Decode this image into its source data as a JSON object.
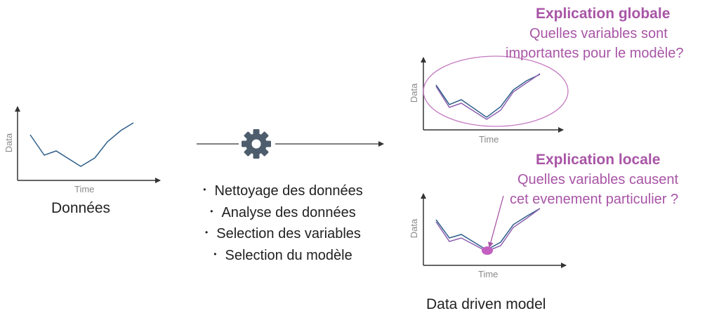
{
  "left_chart": {
    "ylabel": "Data",
    "xlabel": "Time",
    "caption": "Données"
  },
  "pipeline": {
    "gear_icon": "gear-icon",
    "steps": [
      "Nettoyage des données",
      "Analyse des données",
      "Selection des variables",
      "Selection du modèle"
    ]
  },
  "global_chart": {
    "ylabel": "Data",
    "xlabel": "Time"
  },
  "local_chart": {
    "ylabel": "Data",
    "xlabel": "Time"
  },
  "global_explanation": {
    "title": "Explication globale",
    "line1": "Quelles variables sont",
    "line2": "importantes pour le modèle?"
  },
  "local_explanation": {
    "title": "Explication locale",
    "line1": "Quelles variables causent",
    "line2": "cet evenement particulier ?"
  },
  "model_caption": "Data driven model",
  "colors": {
    "series_blue": "#2f5f8a",
    "series_purple": "#8b5fb0",
    "accent": "#a855a6",
    "axis": "#333333",
    "gear": "#4d5d6d"
  }
}
